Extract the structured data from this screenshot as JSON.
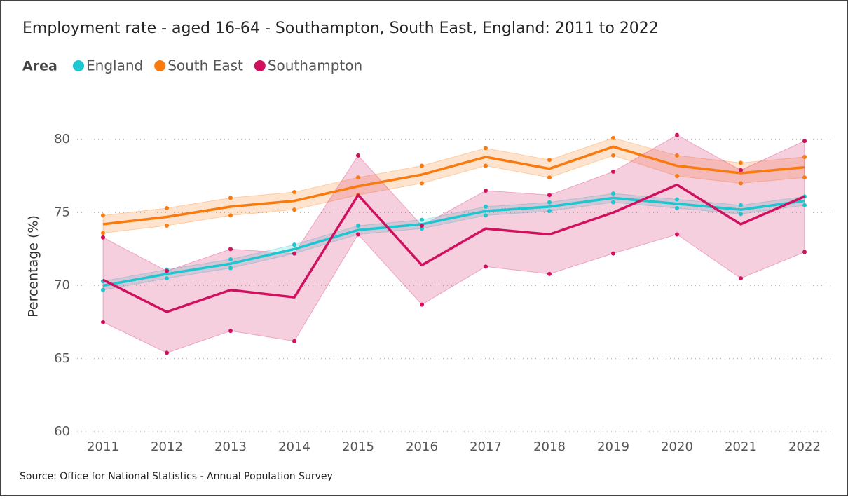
{
  "chart_data": {
    "type": "line",
    "title": "Employment rate - aged 16-64 - Southampton, South East, England: 2011 to 2022",
    "legend_title": "Area",
    "y_label": "Percentage (%)",
    "source": "Source: Office for National Statistics - Annual Population Survey",
    "categories": [
      "2011",
      "2012",
      "2013",
      "2014",
      "2015",
      "2016",
      "2017",
      "2018",
      "2019",
      "2020",
      "2021",
      "2022"
    ],
    "ylim": [
      60,
      80
    ],
    "yticks": [
      60,
      65,
      70,
      75,
      80
    ],
    "grid": true,
    "series": [
      {
        "name": "England",
        "color": "#1ec6cf",
        "values": [
          70.0,
          70.8,
          71.5,
          72.5,
          73.8,
          74.2,
          75.1,
          75.4,
          76.0,
          75.6,
          75.2,
          75.8
        ],
        "upper": [
          70.3,
          71.1,
          71.8,
          72.8,
          74.1,
          74.5,
          75.4,
          75.7,
          76.3,
          75.9,
          75.5,
          76.1
        ],
        "lower": [
          69.7,
          70.5,
          71.2,
          72.2,
          73.5,
          73.9,
          74.8,
          75.1,
          75.7,
          75.3,
          74.9,
          75.5
        ]
      },
      {
        "name": "South East",
        "color": "#f97a0e",
        "values": [
          74.2,
          74.7,
          75.4,
          75.8,
          76.8,
          77.6,
          78.8,
          78.0,
          79.5,
          78.2,
          77.7,
          78.1
        ],
        "upper": [
          74.8,
          75.3,
          76.0,
          76.4,
          77.4,
          78.2,
          79.4,
          78.6,
          80.1,
          78.9,
          78.4,
          78.8
        ],
        "lower": [
          73.6,
          74.1,
          74.8,
          75.2,
          76.2,
          77.0,
          78.2,
          77.4,
          78.9,
          77.5,
          77.0,
          77.4
        ]
      },
      {
        "name": "Southampton",
        "color": "#d1105e",
        "values": [
          70.4,
          68.2,
          69.7,
          69.2,
          76.2,
          71.4,
          73.9,
          73.5,
          75.0,
          76.9,
          74.2,
          76.1
        ],
        "upper": [
          73.3,
          71.0,
          72.5,
          72.2,
          78.9,
          74.1,
          76.5,
          76.2,
          77.8,
          80.3,
          77.9,
          79.9
        ],
        "lower": [
          67.5,
          65.4,
          66.9,
          66.2,
          73.5,
          68.7,
          71.3,
          70.8,
          72.2,
          73.5,
          70.5,
          72.3
        ]
      }
    ]
  }
}
